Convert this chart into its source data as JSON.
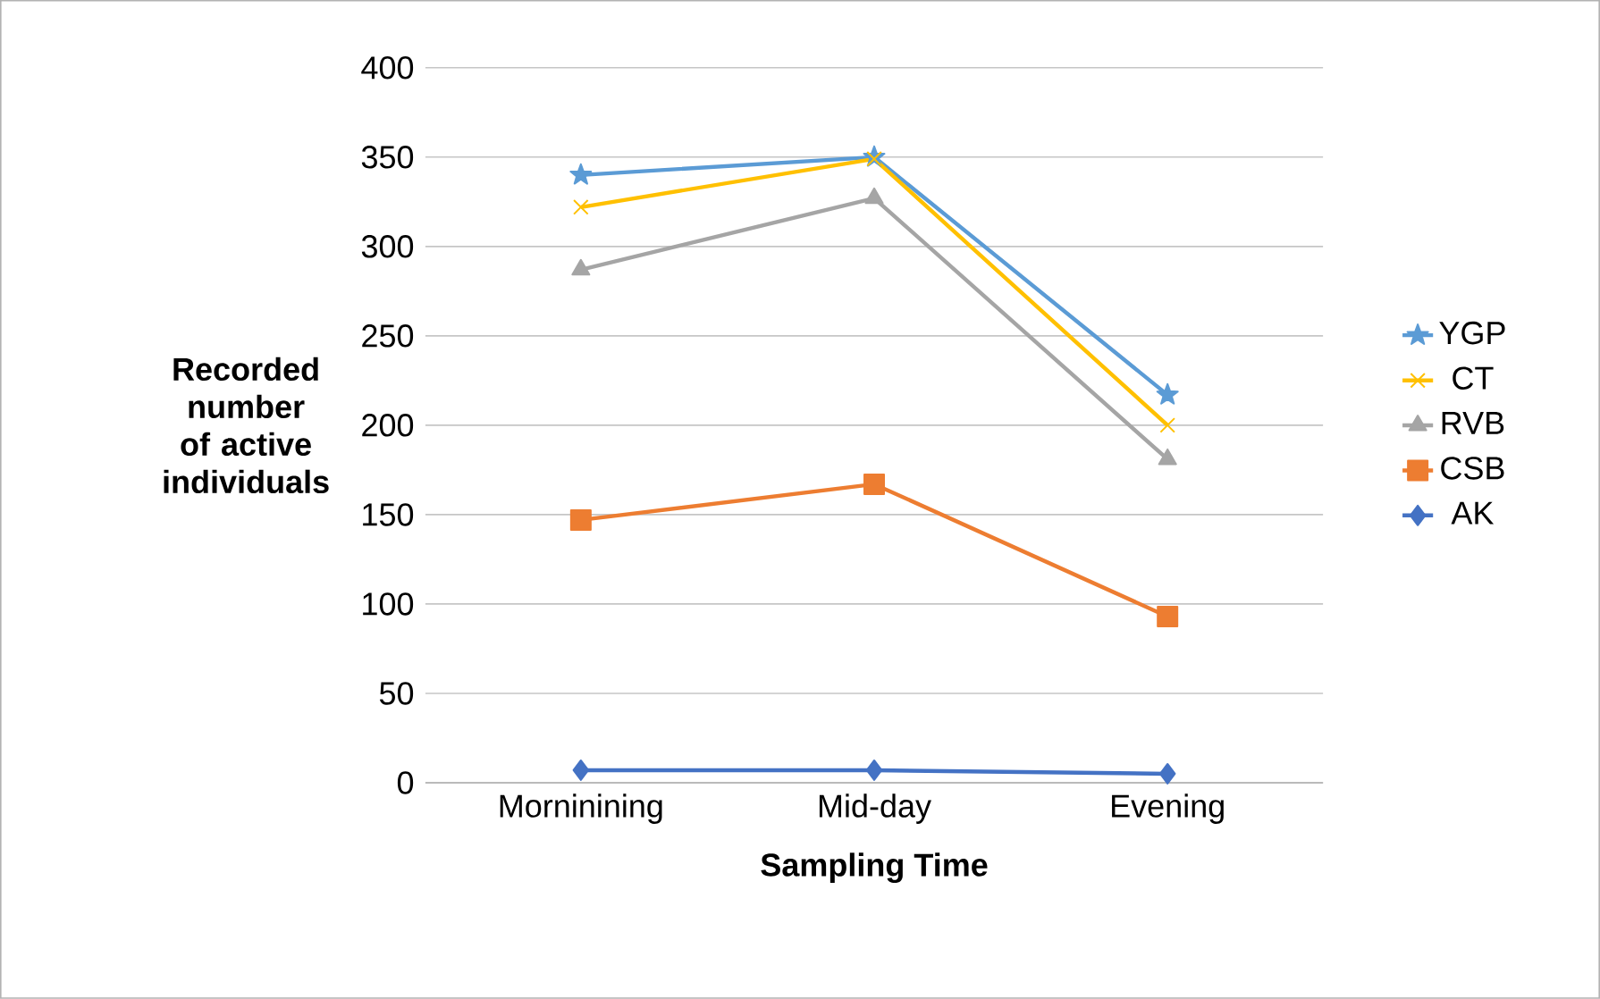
{
  "chart_data": {
    "type": "line",
    "xlabel": "Sampling Time",
    "ylabel": "Recorded number of active individuals",
    "categories": [
      "Morninining",
      "Mid-day",
      "Evening"
    ],
    "ylim": [
      0,
      400
    ],
    "yticks": [
      0,
      50,
      100,
      150,
      200,
      250,
      300,
      350,
      400
    ],
    "grid": "y",
    "legend": "right",
    "line_style": "solid",
    "series": [
      {
        "name": "YGP",
        "color": "#5b9bd5",
        "marker": "star",
        "values": [
          340,
          350,
          217
        ]
      },
      {
        "name": "CT",
        "color": "#ffc000",
        "marker": "cross",
        "values": [
          322,
          349,
          200
        ]
      },
      {
        "name": "RVB",
        "color": "#a5a5a5",
        "marker": "triangle",
        "values": [
          287,
          327,
          181
        ]
      },
      {
        "name": "CSB",
        "color": "#ed7d31",
        "marker": "square",
        "values": [
          147,
          167,
          93
        ]
      },
      {
        "name": "AK",
        "color": "#4472c4",
        "marker": "diamond",
        "values": [
          7,
          7,
          5
        ]
      }
    ]
  }
}
